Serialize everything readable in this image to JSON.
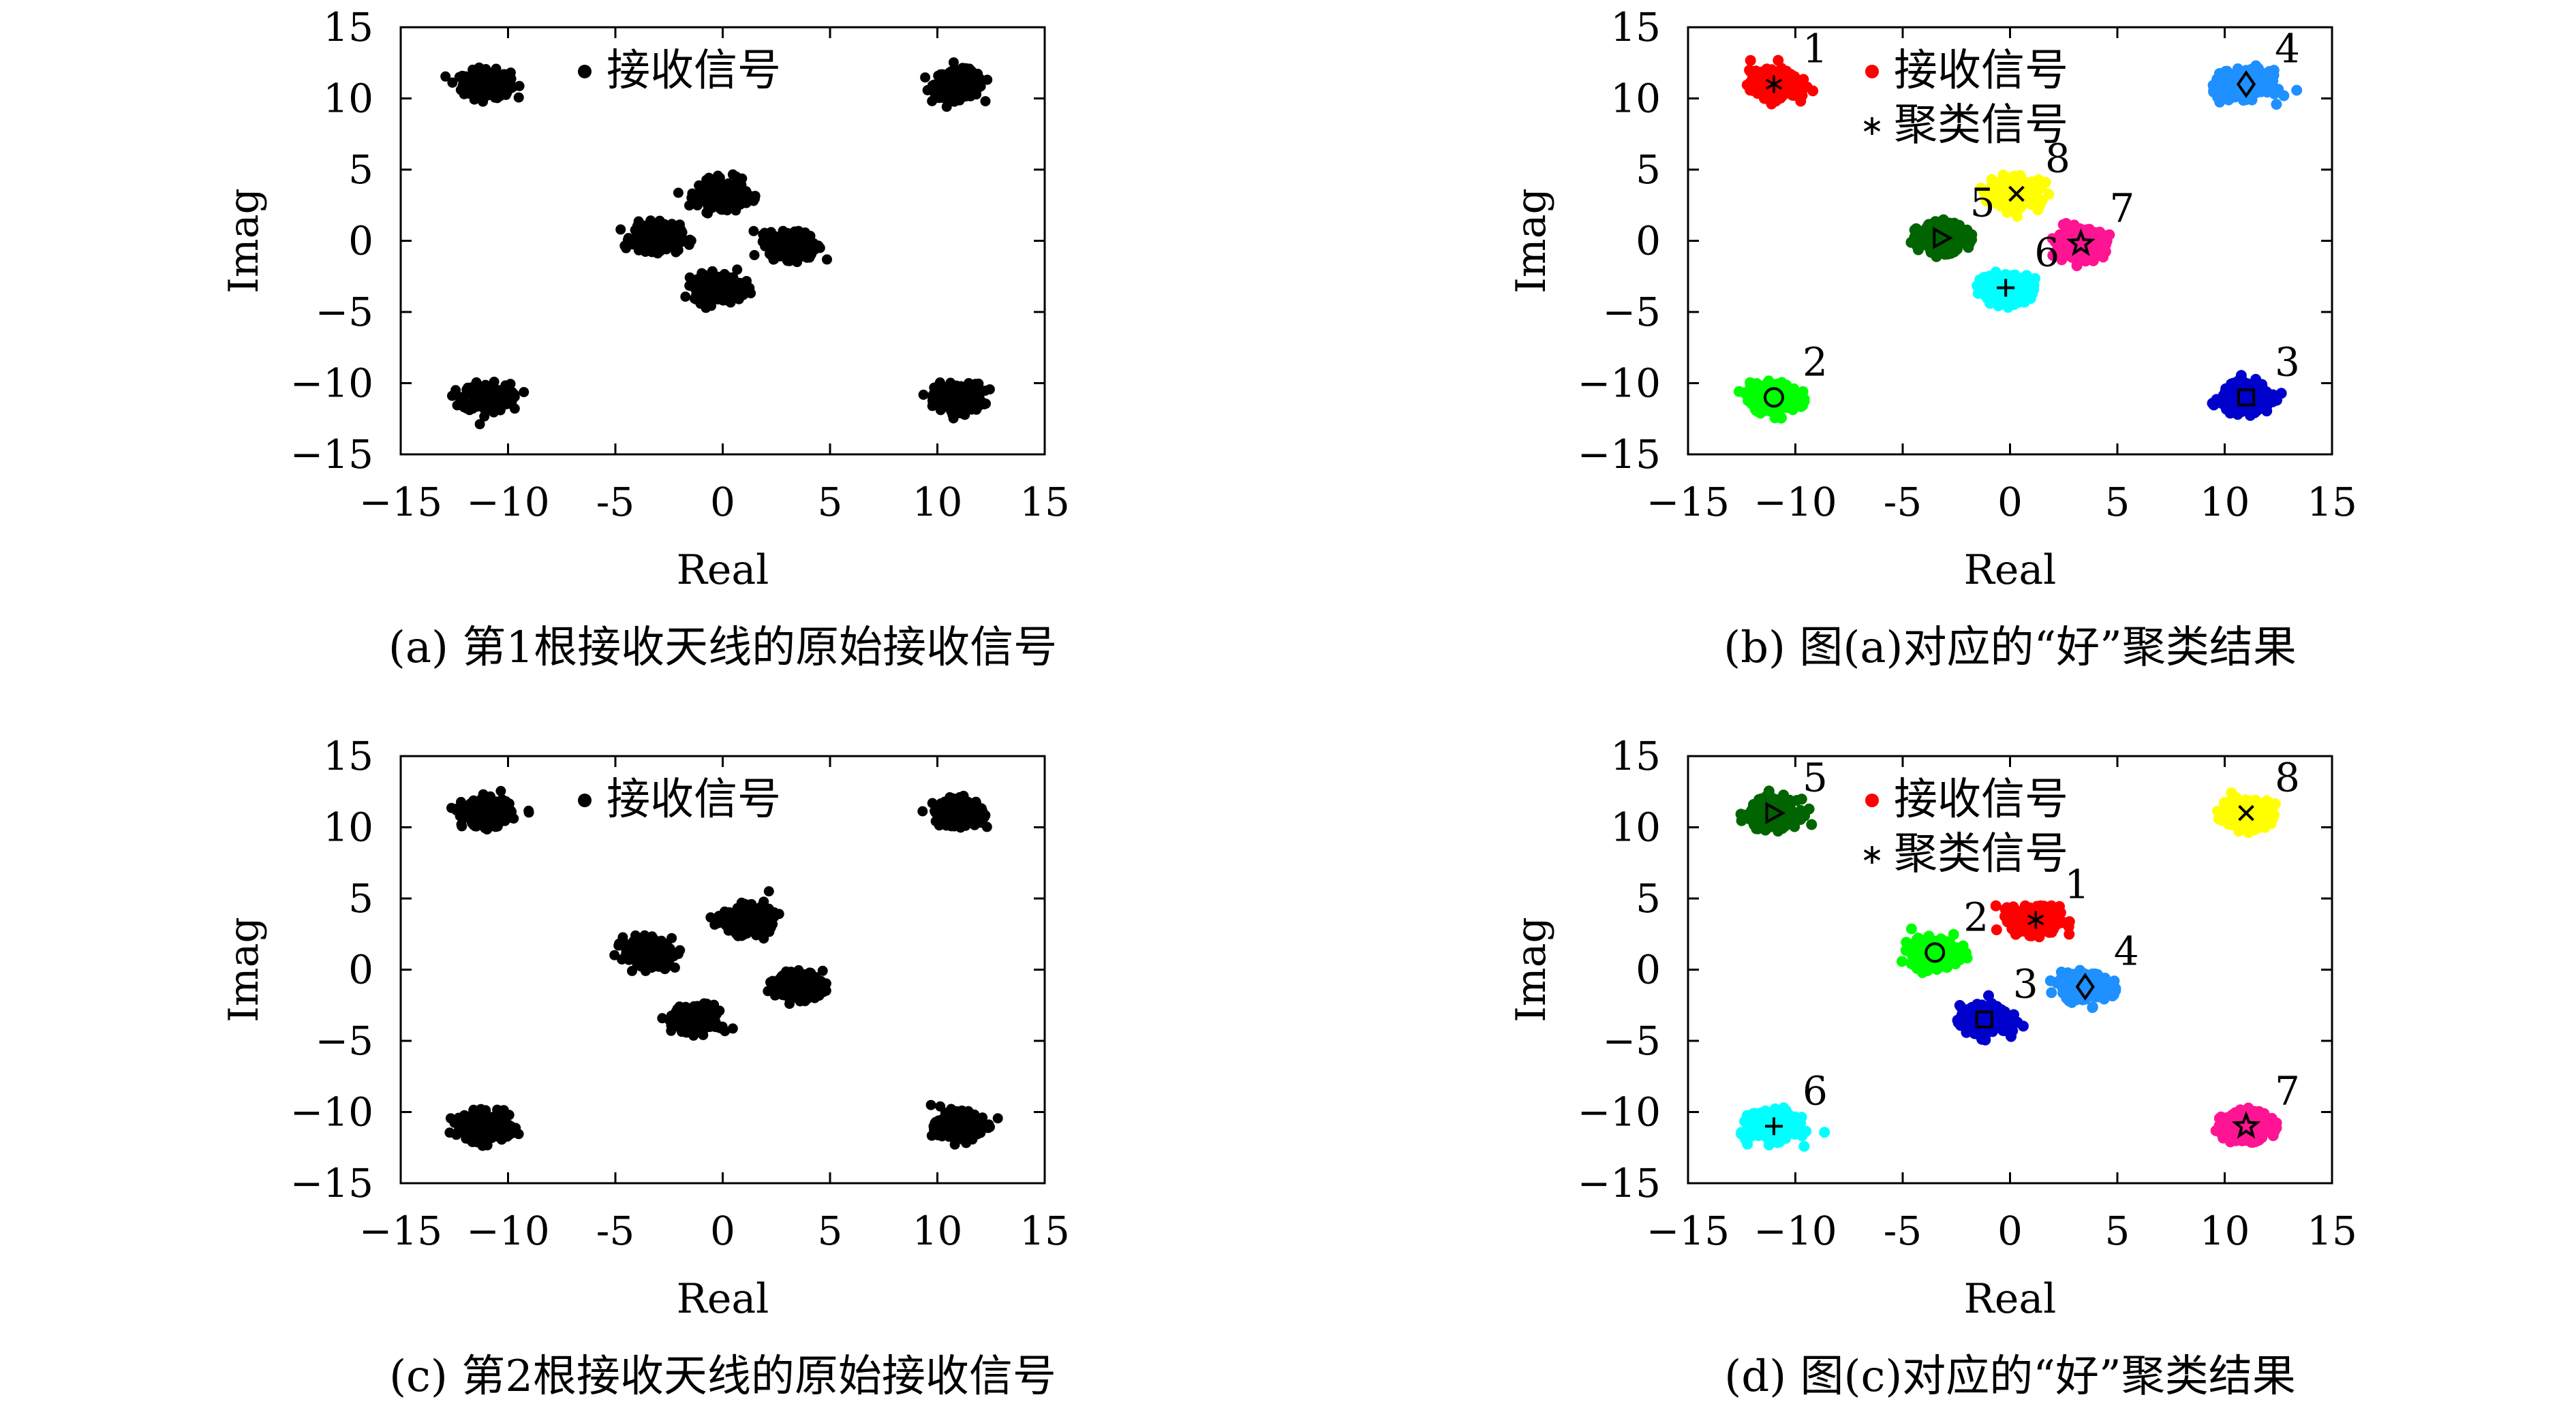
{
  "chart_data": [
    {
      "type": "scatter",
      "id": "a",
      "caption": "(a) 第1根接收天线的原始接收信号",
      "xlabel": "Real",
      "ylabel": "Imag",
      "xlim": [
        -15,
        15
      ],
      "ylim": [
        -15,
        15
      ],
      "xticks": [
        -15,
        -10,
        -5,
        0,
        5,
        10,
        15
      ],
      "yticks": [
        -15,
        -10,
        -5,
        0,
        5,
        10,
        15
      ],
      "xtick_labels": [
        "−15",
        "−10",
        "-5",
        "0",
        "5",
        "10",
        "15"
      ],
      "ytick_labels": [
        "−15",
        "−10",
        "−5",
        "0",
        "5",
        "10",
        "15"
      ],
      "grid": false,
      "legend": {
        "placement": "top-left",
        "entries": [
          {
            "label": "接收信号",
            "marker": "dot",
            "color": "#000000"
          }
        ]
      },
      "series": [
        {
          "name": "接收信号",
          "color": "#000000",
          "clusters": [
            [
              -11,
              11
            ],
            [
              11,
              11
            ],
            [
              -11,
              -11
            ],
            [
              11,
              -11
            ],
            [
              0,
              3.3
            ],
            [
              -3.1,
              0.2
            ],
            [
              3.3,
              -0.3
            ],
            [
              -0.2,
              -3.3
            ]
          ]
        }
      ]
    },
    {
      "type": "scatter",
      "id": "b",
      "caption": "(b) 图(a)对应的“好”聚类结果",
      "xlabel": "Real",
      "ylabel": "Imag",
      "xlim": [
        -15,
        15
      ],
      "ylim": [
        -15,
        15
      ],
      "xticks": [
        -15,
        -10,
        -5,
        0,
        5,
        10,
        15
      ],
      "yticks": [
        -15,
        -10,
        -5,
        0,
        5,
        10,
        15
      ],
      "xtick_labels": [
        "−15",
        "−10",
        "-5",
        "0",
        "5",
        "10",
        "15"
      ],
      "ytick_labels": [
        "−15",
        "−10",
        "−5",
        "0",
        "5",
        "10",
        "15"
      ],
      "grid": false,
      "legend": {
        "placement": "top-left",
        "entries": [
          {
            "label": "接收信号",
            "marker": "dot",
            "color": "#ff0000"
          },
          {
            "label": "聚类信号",
            "marker": "asterisk",
            "color": "#000000"
          }
        ]
      },
      "clusters": [
        {
          "label": "1",
          "x": -11,
          "y": 11,
          "color": "#ff0000",
          "marker": "asterisk"
        },
        {
          "label": "2",
          "x": -11,
          "y": -11,
          "color": "#00ff00",
          "marker": "circle"
        },
        {
          "label": "3",
          "x": 11,
          "y": -11,
          "color": "#0000cc",
          "marker": "square"
        },
        {
          "label": "4",
          "x": 11,
          "y": 11,
          "color": "#1e90ff",
          "marker": "diamond"
        },
        {
          "label": "5",
          "x": -3.2,
          "y": 0.2,
          "color": "#006400",
          "marker": "triangle-right"
        },
        {
          "label": "6",
          "x": -0.2,
          "y": -3.3,
          "color": "#00ffff",
          "marker": "plus"
        },
        {
          "label": "7",
          "x": 3.3,
          "y": -0.2,
          "color": "#ff1493",
          "marker": "star"
        },
        {
          "label": "8",
          "x": 0.3,
          "y": 3.3,
          "color": "#ffff00",
          "marker": "cross"
        }
      ]
    },
    {
      "type": "scatter",
      "id": "c",
      "caption": "(c) 第2根接收天线的原始接收信号",
      "xlabel": "Real",
      "ylabel": "Imag",
      "xlim": [
        -15,
        15
      ],
      "ylim": [
        -15,
        15
      ],
      "xticks": [
        -15,
        -10,
        -5,
        0,
        5,
        10,
        15
      ],
      "yticks": [
        -15,
        -10,
        -5,
        0,
        5,
        10,
        15
      ],
      "xtick_labels": [
        "−15",
        "−10",
        "-5",
        "0",
        "5",
        "10",
        "15"
      ],
      "ytick_labels": [
        "−15",
        "−10",
        "−5",
        "0",
        "5",
        "10",
        "15"
      ],
      "grid": false,
      "legend": {
        "placement": "top-left",
        "entries": [
          {
            "label": "接收信号",
            "marker": "dot",
            "color": "#000000"
          }
        ]
      },
      "series": [
        {
          "name": "接收信号",
          "color": "#000000",
          "clusters": [
            [
              -11,
              11
            ],
            [
              11,
              11
            ],
            [
              -11,
              -11
            ],
            [
              11,
              -11
            ],
            [
              1.1,
              3.5
            ],
            [
              -3.5,
              1.2
            ],
            [
              3.6,
              -1.2
            ],
            [
              -1.2,
              -3.5
            ]
          ]
        }
      ]
    },
    {
      "type": "scatter",
      "id": "d",
      "caption": "(d) 图(c)对应的“好”聚类结果",
      "xlabel": "Real",
      "ylabel": "Imag",
      "xlim": [
        -15,
        15
      ],
      "ylim": [
        -15,
        15
      ],
      "xticks": [
        -15,
        -10,
        -5,
        0,
        5,
        10,
        15
      ],
      "yticks": [
        -15,
        -10,
        -5,
        0,
        5,
        10,
        15
      ],
      "xtick_labels": [
        "−15",
        "−10",
        "-5",
        "0",
        "5",
        "10",
        "15"
      ],
      "ytick_labels": [
        "−15",
        "−10",
        "−5",
        "0",
        "5",
        "10",
        "15"
      ],
      "grid": false,
      "legend": {
        "placement": "top-left",
        "entries": [
          {
            "label": "接收信号",
            "marker": "dot",
            "color": "#ff0000"
          },
          {
            "label": "聚类信号",
            "marker": "asterisk",
            "color": "#000000"
          }
        ]
      },
      "clusters": [
        {
          "label": "1",
          "x": 1.2,
          "y": 3.5,
          "color": "#ff0000",
          "marker": "asterisk"
        },
        {
          "label": "2",
          "x": -3.5,
          "y": 1.2,
          "color": "#00ff00",
          "marker": "circle"
        },
        {
          "label": "3",
          "x": -1.2,
          "y": -3.5,
          "color": "#0000cc",
          "marker": "square"
        },
        {
          "label": "4",
          "x": 3.5,
          "y": -1.2,
          "color": "#1e90ff",
          "marker": "diamond"
        },
        {
          "label": "5",
          "x": -11,
          "y": 11,
          "color": "#006400",
          "marker": "triangle-right"
        },
        {
          "label": "6",
          "x": -11,
          "y": -11,
          "color": "#00ffff",
          "marker": "plus"
        },
        {
          "label": "7",
          "x": 11,
          "y": -11,
          "color": "#ff1493",
          "marker": "star"
        },
        {
          "label": "8",
          "x": 11,
          "y": 11,
          "color": "#ffff00",
          "marker": "cross"
        }
      ]
    }
  ]
}
